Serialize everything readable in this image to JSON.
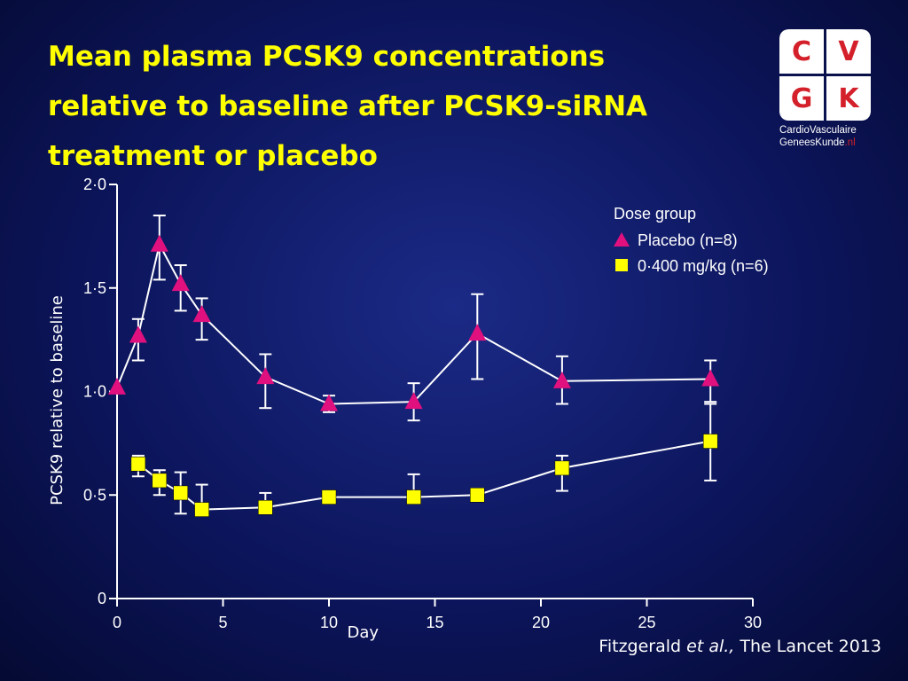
{
  "title_lines": [
    "Mean plasma PCSK9 concentrations",
    "relative to baseline after PCSK9-siRNA",
    "treatment or placebo"
  ],
  "logo": {
    "letters": [
      "C",
      "V",
      "G",
      "K"
    ],
    "line1": "CardioVasculaire",
    "line2_main": "GeneesKunde",
    "line2_suffix": ".nl"
  },
  "citation": {
    "author": "Fitzgerald ",
    "etal": "et al.,",
    "journal": " The Lancet 2013"
  },
  "colors": {
    "placebo": "#e0107e",
    "dose": "#ffff00",
    "line": "#ffffff",
    "title": "#ffff00"
  },
  "chart_data": {
    "type": "line",
    "xlabel": "Day",
    "ylabel": "PCSK9 relative to baseline",
    "xlim": [
      0,
      30
    ],
    "ylim": [
      0,
      2.0
    ],
    "x_ticks": [
      "0",
      "5",
      "10",
      "15",
      "20",
      "25",
      "30"
    ],
    "x_tick_values": [
      0,
      5,
      10,
      15,
      20,
      25,
      30
    ],
    "y_ticks": [
      "0",
      "0·5",
      "1·0",
      "1·5",
      "2·0"
    ],
    "y_tick_values": [
      0,
      0.5,
      1.0,
      1.5,
      2.0
    ],
    "legend_title": "Dose group",
    "legend_position": "top-right",
    "grid": false,
    "series": [
      {
        "name": "Placebo (n=8)",
        "marker": "triangle",
        "x": [
          0,
          1,
          2,
          3,
          4,
          7,
          10,
          14,
          17,
          21,
          28
        ],
        "y": [
          1.02,
          1.27,
          1.71,
          1.52,
          1.37,
          1.07,
          0.94,
          0.95,
          1.28,
          1.05,
          1.06
        ],
        "err_low": [
          1.02,
          1.15,
          1.54,
          1.39,
          1.25,
          0.92,
          0.9,
          0.86,
          1.06,
          0.94,
          0.95
        ],
        "err_high": [
          1.02,
          1.35,
          1.85,
          1.61,
          1.45,
          1.18,
          0.98,
          1.04,
          1.47,
          1.17,
          1.15
        ]
      },
      {
        "name": "0·400 mg/kg (n=6)",
        "marker": "square",
        "x": [
          1,
          2,
          3,
          4,
          7,
          10,
          14,
          17,
          21,
          28
        ],
        "y": [
          0.65,
          0.57,
          0.51,
          0.43,
          0.44,
          0.49,
          0.49,
          0.5,
          0.63,
          0.76
        ],
        "err_low": [
          0.59,
          0.5,
          0.41,
          0.42,
          0.42,
          0.47,
          0.46,
          0.5,
          0.52,
          0.57
        ],
        "err_high": [
          0.69,
          0.62,
          0.61,
          0.55,
          0.51,
          0.51,
          0.6,
          0.5,
          0.69,
          0.94
        ]
      }
    ]
  }
}
